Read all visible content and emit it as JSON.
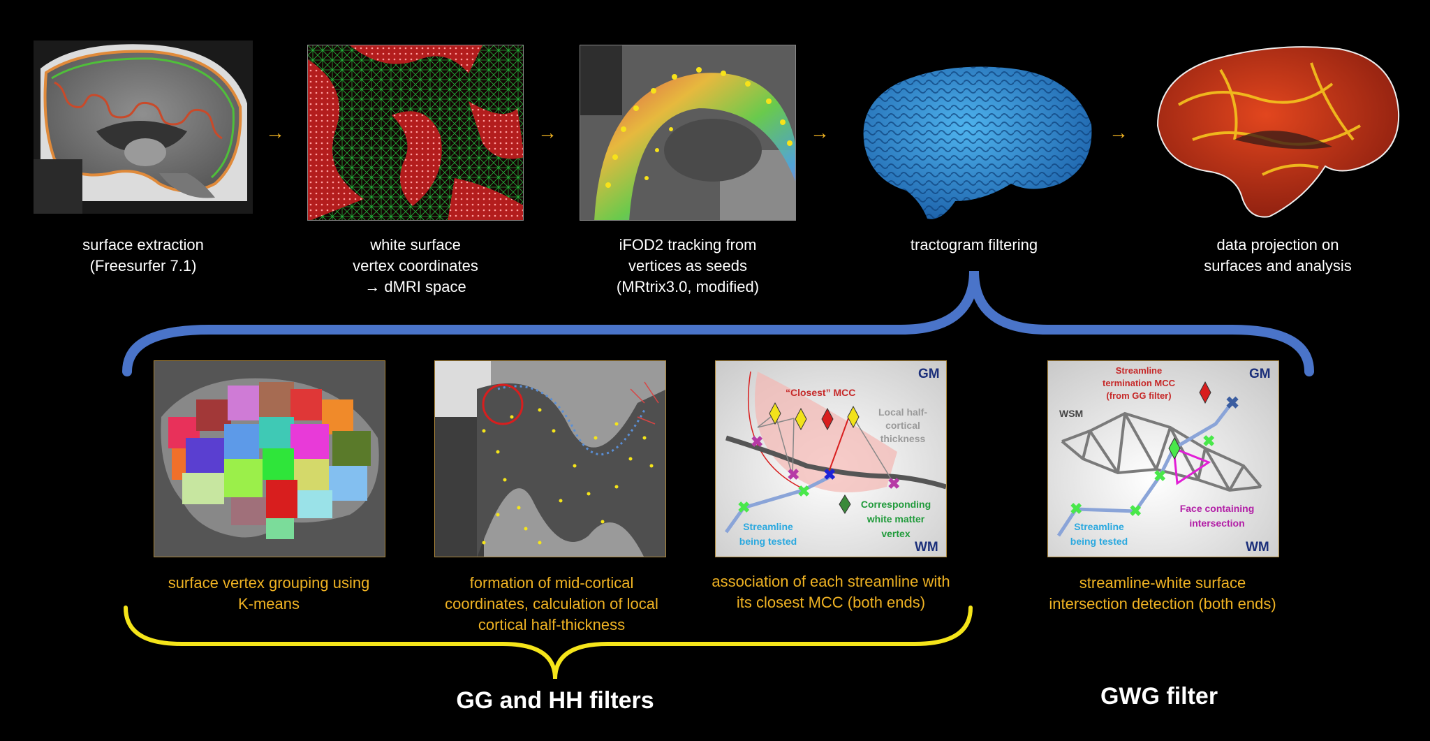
{
  "pipeline": {
    "steps": [
      {
        "label": "surface extraction\n(Freesurfer 7.1)"
      },
      {
        "label": "white surface\nvertex coordinates\n→ dMRI space"
      },
      {
        "label": "iFOD2 tracking from\nvertices as seeds\n(MRtrix3.0, modified)"
      },
      {
        "label": "tractogram filtering"
      },
      {
        "label": "data projection on\nsurfaces and analysis"
      }
    ],
    "arrow_glyph": "→"
  },
  "filters": {
    "steps": [
      {
        "label": "surface vertex grouping using\nK-means"
      },
      {
        "label": "formation of mid-cortical\ncoordinates, calculation of local\ncortical half-thickness"
      },
      {
        "label": "association of each streamline with\nits closest MCC (both ends)"
      },
      {
        "label": "streamline-white surface\nintersection detection (both ends)"
      }
    ],
    "gg_hh_label": "GG and HH filters",
    "gwg_label": "GWG filter"
  },
  "diagram_mcc": {
    "gm": "GM",
    "wm": "WM",
    "closest_mcc": "“Closest” MCC",
    "local_half_line1": "Local half-",
    "local_half_line2": "cortical",
    "local_half_line3": "thickness",
    "corr_line1": "Corresponding",
    "corr_line2": "white matter",
    "corr_line3": "vertex",
    "stream_line1": "Streamline",
    "stream_line2": "being tested"
  },
  "diagram_gwg": {
    "gm": "GM",
    "wm": "WM",
    "wsm": "WSM",
    "term_line1": "Streamline",
    "term_line2": "termination MCC",
    "term_line3": "(from GG filter)",
    "face_line1": "Face containing",
    "face_line2": "intersection",
    "stream_line1": "Streamline",
    "stream_line2": "being tested"
  },
  "colors": {
    "accent_yellow": "#f0b323",
    "brace_blue": "#4a74c9",
    "brace_yellow": "#f5e51a",
    "panel_border": "#b08a3c"
  }
}
